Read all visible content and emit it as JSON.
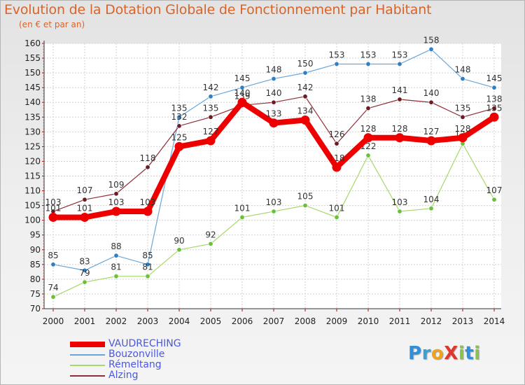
{
  "header": {
    "title": "Evolution de la Dotation Globale de Fonctionnement par Habitant",
    "subtitle": "(en € et par an)"
  },
  "logo": {
    "text": "ProXiti",
    "letters": [
      {
        "ch": "P",
        "color": "#2f8fd8"
      },
      {
        "ch": "r",
        "color": "#3f9fd0"
      },
      {
        "ch": "o",
        "color": "#f0a21a"
      },
      {
        "ch": "X",
        "color": "#e0362c"
      },
      {
        "ch": "i",
        "color": "#8bc34a"
      },
      {
        "ch": "t",
        "color": "#2f8fd8"
      },
      {
        "ch": "i",
        "color": "#8bc34a"
      }
    ]
  },
  "chart_data": {
    "type": "line",
    "title": "Evolution de la Dotation Globale de Fonctionnement par Habitant",
    "subtitle": "(en € et par an)",
    "xlabel": "",
    "ylabel": "",
    "categories": [
      "2000",
      "2001",
      "2002",
      "2003",
      "2004",
      "2005",
      "2006",
      "2007",
      "2008",
      "2009",
      "2010",
      "2011",
      "2012",
      "2013",
      "2014"
    ],
    "ylim": [
      70,
      160
    ],
    "yticks": [
      70,
      75,
      80,
      85,
      90,
      95,
      100,
      105,
      110,
      115,
      120,
      125,
      130,
      135,
      140,
      145,
      150,
      155,
      160
    ],
    "grid": true,
    "legend_position": "bottom-left",
    "series": [
      {
        "name": "Bouzonville",
        "color": "#6aa7d8",
        "marker": "#2f7fc4",
        "width": 1.2,
        "marker_r": 3.2,
        "values": [
          85,
          83,
          88,
          85,
          135,
          142,
          145,
          148,
          150,
          153,
          153,
          153,
          158,
          148,
          145
        ],
        "labels": [
          "85",
          "83",
          "88",
          "85",
          "135",
          "142",
          "145",
          "148",
          "150",
          "153",
          "153",
          "153",
          "158",
          "148",
          "145"
        ]
      },
      {
        "name": "Rémeltang",
        "color": "#a6d96a",
        "marker": "#6cbf3a",
        "width": 1.2,
        "marker_r": 3.2,
        "values": [
          74,
          79,
          81,
          81,
          90,
          92,
          101,
          103,
          105,
          101,
          122,
          103,
          104,
          126,
          107
        ],
        "labels": [
          "74",
          "79",
          "81",
          "81",
          "90",
          "92",
          "101",
          "103",
          "105",
          "101",
          "122",
          "103",
          "104",
          "126",
          "107"
        ]
      },
      {
        "name": "Alzing",
        "color": "#8e2f36",
        "marker": "#6b1c22",
        "width": 1.2,
        "marker_r": 3.2,
        "values": [
          103,
          107,
          109,
          118,
          132,
          135,
          139,
          140,
          142,
          126,
          138,
          141,
          140,
          135,
          138
        ],
        "labels": [
          "103",
          "107",
          "109",
          "118",
          "132",
          "135",
          "139",
          "140",
          "142",
          "126",
          "138",
          "141",
          "140",
          "135",
          "138"
        ]
      },
      {
        "name": "VAUDRECHING",
        "color": "#ee0000",
        "marker": "#ee0000",
        "width": 8,
        "marker_r": 6.5,
        "values": [
          101,
          101,
          103,
          103,
          125,
          127,
          140,
          133,
          134,
          118,
          128,
          128,
          127,
          128,
          135
        ],
        "labels": [
          "101",
          "101",
          "103",
          "103",
          "125",
          "127",
          "140",
          "133",
          "134",
          "118",
          "128",
          "128",
          "127",
          "128",
          "135"
        ]
      }
    ]
  },
  "legend": {
    "items": [
      {
        "name": "VAUDRECHING",
        "color": "#ee0000",
        "thickness": 8
      },
      {
        "name": "Bouzonville",
        "color": "#6aa7d8",
        "thickness": 2
      },
      {
        "name": "Rémeltang",
        "color": "#a6d96a",
        "thickness": 2
      },
      {
        "name": "Alzing",
        "color": "#8e2f36",
        "thickness": 2
      }
    ]
  }
}
